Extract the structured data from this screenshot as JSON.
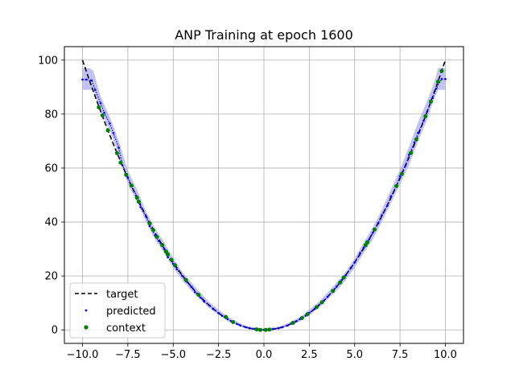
{
  "chart_data": {
    "type": "line",
    "title": "ANP Training at epoch 1600",
    "xlabel": "",
    "ylabel": "",
    "xlim": [
      -11,
      11
    ],
    "ylim": [
      -5,
      105
    ],
    "xticks": [
      -10,
      -7.5,
      -5,
      -2.5,
      0,
      2.5,
      5,
      7.5,
      10
    ],
    "xtick_labels": [
      "−10.0",
      "−7.5",
      "−5.0",
      "−2.5",
      "0.0",
      "2.5",
      "5.0",
      "7.5",
      "10.0"
    ],
    "yticks": [
      0,
      20,
      40,
      60,
      80,
      100
    ],
    "ytick_labels": [
      "0",
      "20",
      "40",
      "60",
      "80",
      "100"
    ],
    "grid": true,
    "legend_position": "lower-left",
    "colors": {
      "target": "#000000",
      "predicted": "#0000ff",
      "context": "#008000",
      "band": "#aaaaee"
    },
    "series": [
      {
        "name": "target",
        "style": "dashed",
        "function": "y = x^2",
        "x_range": [
          -10,
          10
        ]
      },
      {
        "name": "predicted",
        "style": "points",
        "x": [
          -10,
          -9.8,
          -9.5,
          -9.3,
          -9.0,
          -8.8,
          -8.5,
          -8.3,
          -8.0,
          -7.8,
          -7.5,
          -7.3,
          -7.0,
          -6.8,
          -6.5,
          -6.3,
          -6.0,
          -5.8,
          -5.5,
          -5.3,
          -5.0,
          -4.8,
          -4.5,
          -4.3,
          -4.0,
          -3.8,
          -3.5,
          -3.3,
          -3.0,
          -2.8,
          -2.5,
          -2.3,
          -2.0,
          -1.8,
          -1.5,
          -1.3,
          -1.0,
          -0.8,
          -0.5,
          -0.3,
          0,
          0.3,
          0.5,
          0.8,
          1.0,
          1.3,
          1.5,
          1.8,
          2.0,
          2.3,
          2.5,
          2.8,
          3.0,
          3.3,
          3.5,
          3.8,
          4.0,
          4.3,
          4.5,
          4.8,
          5.0,
          5.3,
          5.5,
          5.8,
          6.0,
          6.3,
          6.5,
          6.8,
          7.0,
          7.3,
          7.5,
          7.8,
          8.0,
          8.3,
          8.5,
          8.8,
          9.0,
          9.3,
          9.5,
          9.8,
          10
        ],
        "y": [
          92.8,
          92.8,
          92.5,
          89.0,
          84.0,
          80.5,
          76.5,
          73.0,
          67.5,
          61.0,
          56.5,
          53.5,
          49.5,
          45.5,
          42.0,
          38.5,
          35.0,
          33.0,
          30.0,
          27.0,
          24.5,
          22.5,
          20.0,
          18.0,
          16.0,
          14.0,
          12.0,
          10.5,
          9.0,
          7.8,
          6.2,
          5.2,
          4.0,
          3.2,
          2.2,
          1.6,
          1.0,
          0.6,
          0.3,
          0.1,
          0.0,
          0.1,
          0.3,
          0.6,
          1.0,
          1.6,
          2.3,
          3.3,
          4.1,
          5.3,
          6.3,
          7.8,
          9.0,
          10.8,
          12.2,
          14.5,
          16.0,
          18.5,
          20.2,
          23.0,
          25.0,
          28.5,
          30.5,
          33.5,
          36.0,
          39.5,
          42.5,
          46.0,
          49.5,
          53.5,
          57.0,
          61.0,
          65.0,
          69.5,
          73.0,
          77.5,
          81.0,
          86.0,
          89.5,
          93.0,
          93.0
        ]
      },
      {
        "name": "context",
        "style": "markers",
        "x": [
          -9.1,
          -8.9,
          -8.6,
          -8.1,
          -7.9,
          -7.6,
          -7.3,
          -7.0,
          -6.9,
          -6.3,
          -6.1,
          -5.9,
          -5.6,
          -5.4,
          -5.3,
          -5.1,
          -4.9,
          -4.3,
          -3.6,
          -2.1,
          -1.7,
          -0.4,
          -0.2,
          0.1,
          0.3,
          1.6,
          2.1,
          2.4,
          2.9,
          3.2,
          3.8,
          4.2,
          4.4,
          5.6,
          5.7,
          6.1,
          7.3,
          7.6,
          8.1,
          8.4,
          8.9,
          9.2,
          9.6,
          9.8
        ],
        "y": [
          82.5,
          79.5,
          74.0,
          65.5,
          62.0,
          57.5,
          53.5,
          49.0,
          47.5,
          39.5,
          37.0,
          34.5,
          31.5,
          29.0,
          28.0,
          26.0,
          24.0,
          18.5,
          13.0,
          4.8,
          2.9,
          0.2,
          0.0,
          0.0,
          0.1,
          2.6,
          4.4,
          5.8,
          8.4,
          10.2,
          14.4,
          17.6,
          19.4,
          31.4,
          32.5,
          37.2,
          53.3,
          57.8,
          65.6,
          70.6,
          79.2,
          84.6,
          92.0,
          96.0
        ]
      }
    ],
    "uncertainty_band": {
      "x": [
        -10,
        -9.6,
        -9.4,
        -9.0,
        -8.5,
        -8.0,
        -7.5,
        -7.0,
        -6.5,
        -6.0,
        -5.5,
        -5.0,
        -4.5,
        -4.0,
        -3.0,
        -2.0,
        -1.0,
        0,
        1.0,
        2.0,
        3.0,
        4.0,
        4.5,
        5.0,
        5.5,
        6.0,
        6.5,
        7.0,
        7.5,
        8.0,
        8.5,
        9.0,
        9.4,
        9.6,
        10
      ],
      "upper": [
        97.0,
        97.0,
        96.0,
        86.5,
        79.0,
        70.0,
        59.0,
        52.0,
        44.0,
        37.5,
        32.5,
        26.5,
        21.5,
        17.5,
        10.2,
        4.8,
        1.5,
        0.4,
        1.5,
        4.8,
        10.2,
        17.5,
        21.5,
        26.5,
        32.5,
        38.0,
        44.5,
        52.0,
        59.5,
        68.0,
        77.0,
        85.0,
        92.0,
        97.0,
        97.0
      ],
      "lower": [
        89.0,
        89.0,
        89.0,
        81.0,
        74.0,
        65.0,
        54.0,
        47.5,
        40.0,
        33.5,
        28.5,
        23.0,
        18.5,
        14.5,
        8.0,
        3.2,
        0.5,
        -0.4,
        0.5,
        3.2,
        8.0,
        14.5,
        18.5,
        23.0,
        28.5,
        33.5,
        40.0,
        47.0,
        54.0,
        61.0,
        70.0,
        78.0,
        86.0,
        89.0,
        89.0
      ]
    }
  }
}
